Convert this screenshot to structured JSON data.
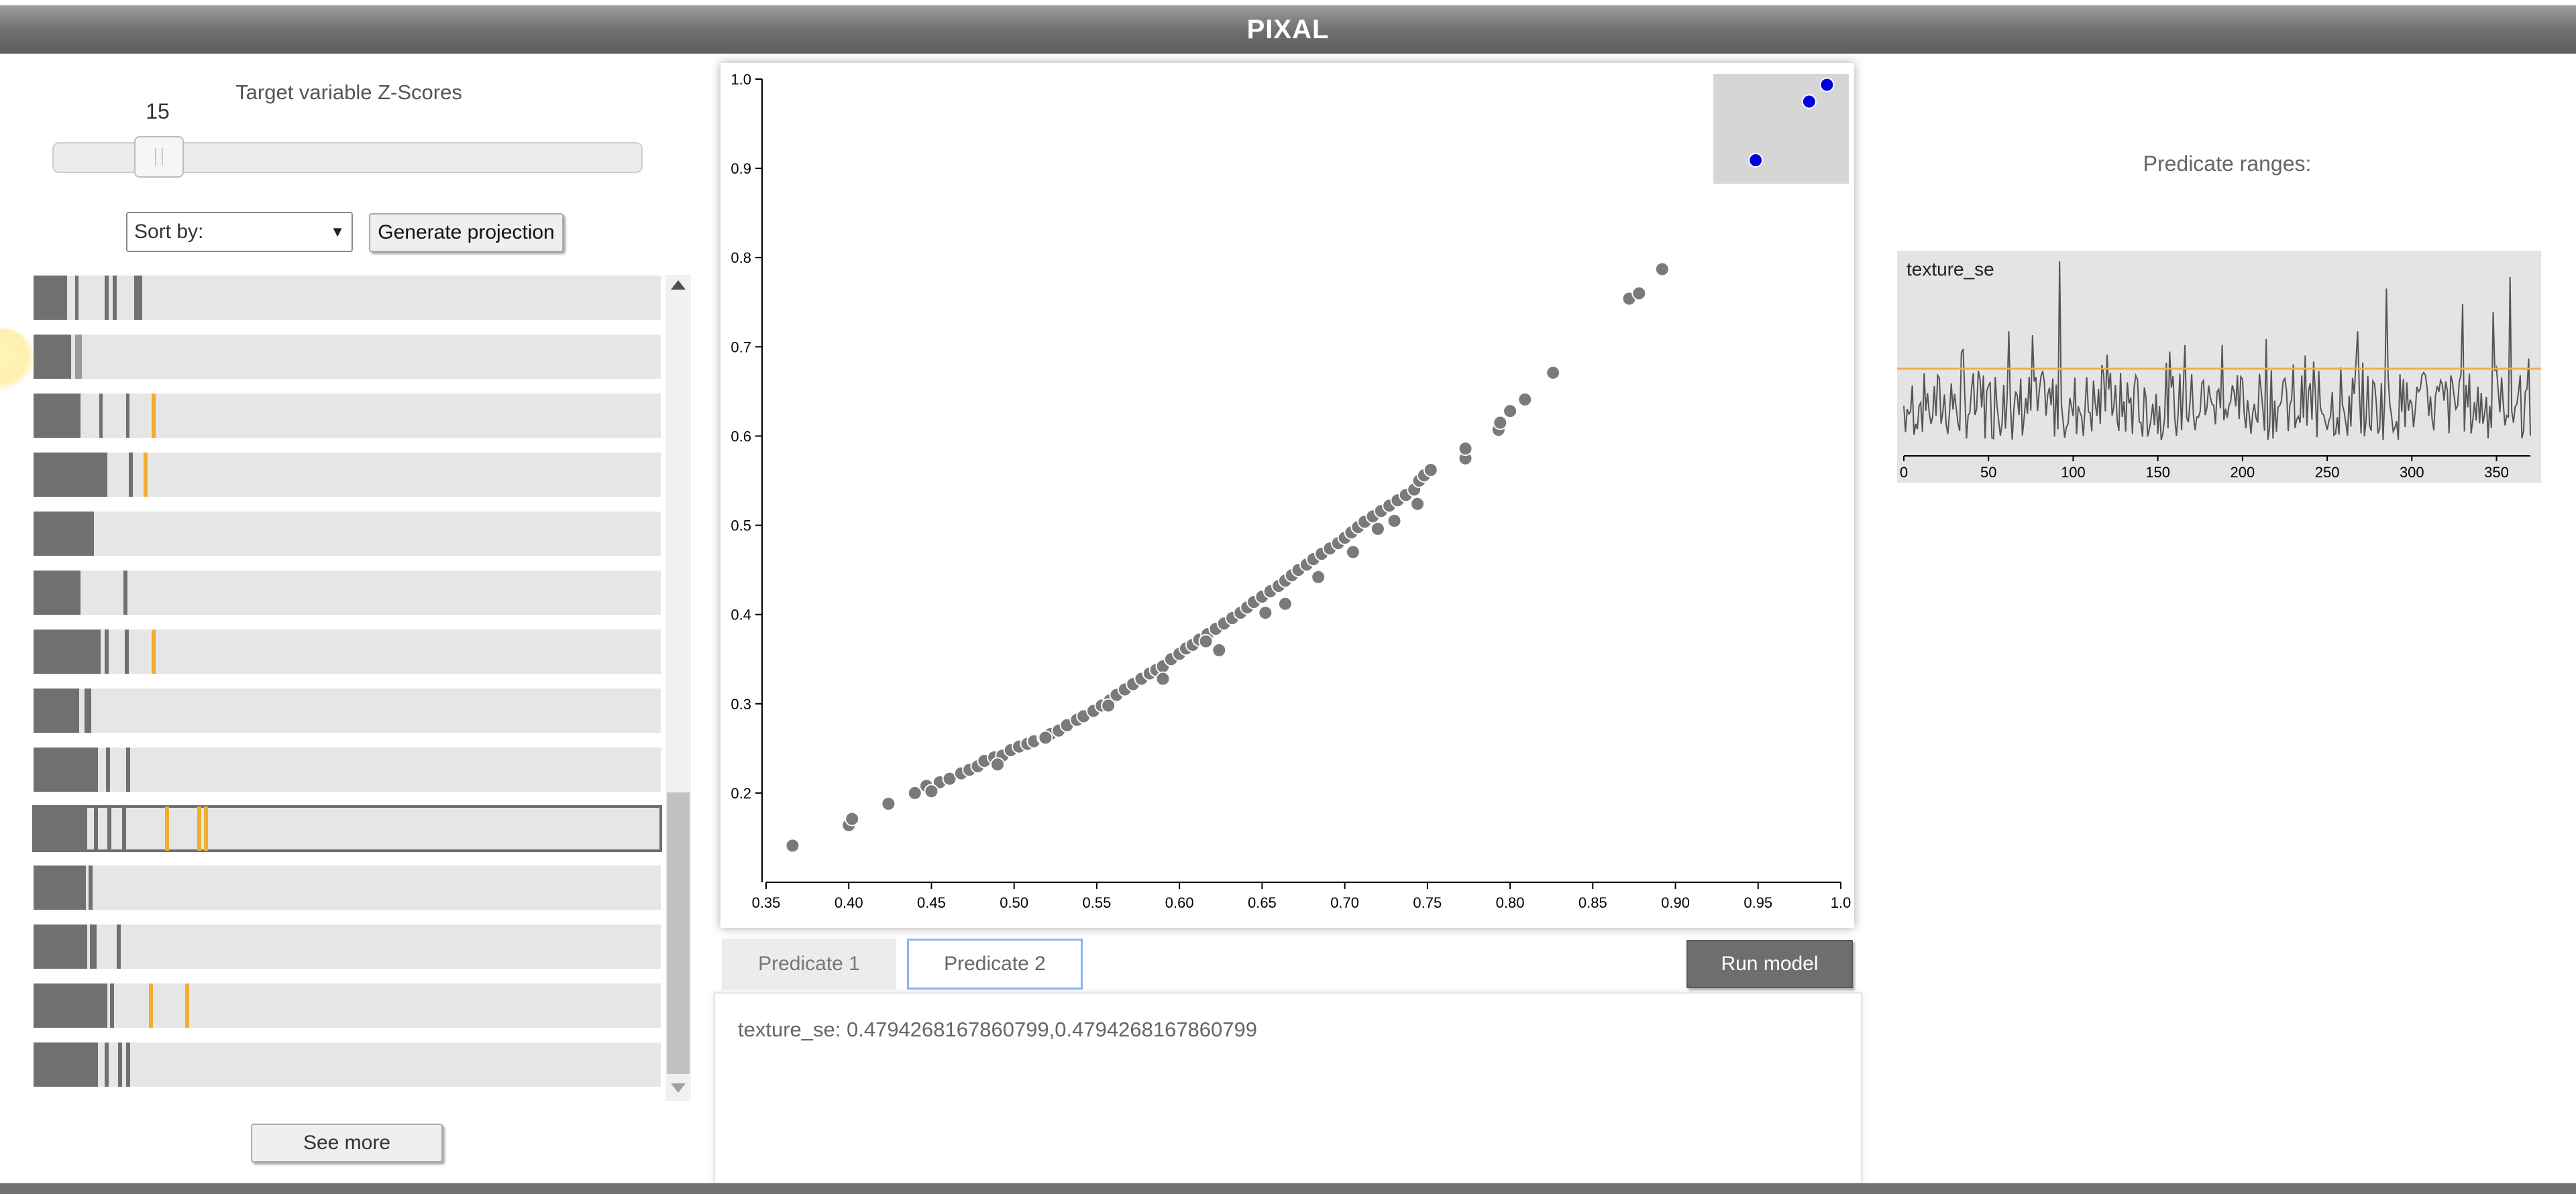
{
  "app": {
    "title": "PIXAL"
  },
  "sidebar": {
    "zscore_label": "Target variable Z-Scores",
    "slider_value": "15",
    "sort_label": "Sort by:",
    "generate_label": "Generate projection",
    "see_more_label": "See more"
  },
  "plot": {
    "x_ticks": [
      "0.35",
      "0.40",
      "0.45",
      "0.50",
      "0.55",
      "0.60",
      "0.65",
      "0.70",
      "0.75",
      "0.80",
      "0.85",
      "0.90",
      "0.95",
      "1.0"
    ],
    "y_ticks": [
      "0.2",
      "0.3",
      "0.4",
      "0.5",
      "0.6",
      "0.7",
      "0.8",
      "0.9",
      "1.0"
    ],
    "point_color": "#7a7a7a",
    "inset_point_color": "#0000dd"
  },
  "chart_data": {
    "type": "scatter",
    "xlim": [
      0.35,
      1.0
    ],
    "ylim": [
      0.1,
      1.0
    ],
    "grid": false,
    "points": [
      [
        0.366,
        0.141
      ],
      [
        0.4,
        0.164
      ],
      [
        0.402,
        0.171
      ],
      [
        0.424,
        0.188
      ],
      [
        0.44,
        0.2
      ],
      [
        0.447,
        0.208
      ],
      [
        0.455,
        0.212
      ],
      [
        0.461,
        0.216
      ],
      [
        0.468,
        0.222
      ],
      [
        0.473,
        0.226
      ],
      [
        0.478,
        0.23
      ],
      [
        0.482,
        0.236
      ],
      [
        0.488,
        0.24
      ],
      [
        0.493,
        0.242
      ],
      [
        0.498,
        0.248
      ],
      [
        0.503,
        0.252
      ],
      [
        0.508,
        0.255
      ],
      [
        0.512,
        0.258
      ],
      [
        0.518,
        0.262
      ],
      [
        0.522,
        0.266
      ],
      [
        0.527,
        0.27
      ],
      [
        0.532,
        0.276
      ],
      [
        0.538,
        0.282
      ],
      [
        0.542,
        0.286
      ],
      [
        0.548,
        0.292
      ],
      [
        0.553,
        0.298
      ],
      [
        0.558,
        0.304
      ],
      [
        0.562,
        0.31
      ],
      [
        0.567,
        0.316
      ],
      [
        0.572,
        0.322
      ],
      [
        0.577,
        0.328
      ],
      [
        0.582,
        0.334
      ],
      [
        0.586,
        0.338
      ],
      [
        0.59,
        0.342
      ],
      [
        0.595,
        0.35
      ],
      [
        0.6,
        0.356
      ],
      [
        0.604,
        0.362
      ],
      [
        0.608,
        0.366
      ],
      [
        0.612,
        0.372
      ],
      [
        0.617,
        0.378
      ],
      [
        0.622,
        0.384
      ],
      [
        0.627,
        0.39
      ],
      [
        0.632,
        0.396
      ],
      [
        0.637,
        0.402
      ],
      [
        0.641,
        0.408
      ],
      [
        0.645,
        0.414
      ],
      [
        0.65,
        0.42
      ],
      [
        0.655,
        0.426
      ],
      [
        0.66,
        0.432
      ],
      [
        0.664,
        0.438
      ],
      [
        0.668,
        0.444
      ],
      [
        0.672,
        0.45
      ],
      [
        0.677,
        0.456
      ],
      [
        0.681,
        0.462
      ],
      [
        0.686,
        0.468
      ],
      [
        0.691,
        0.474
      ],
      [
        0.696,
        0.48
      ],
      [
        0.7,
        0.486
      ],
      [
        0.704,
        0.492
      ],
      [
        0.708,
        0.498
      ],
      [
        0.712,
        0.504
      ],
      [
        0.717,
        0.51
      ],
      [
        0.722,
        0.516
      ],
      [
        0.727,
        0.522
      ],
      [
        0.732,
        0.528
      ],
      [
        0.737,
        0.534
      ],
      [
        0.742,
        0.54
      ],
      [
        0.744,
        0.524
      ],
      [
        0.745,
        0.55
      ],
      [
        0.748,
        0.556
      ],
      [
        0.664,
        0.412
      ],
      [
        0.684,
        0.442
      ],
      [
        0.705,
        0.47
      ],
      [
        0.73,
        0.505
      ],
      [
        0.624,
        0.36
      ],
      [
        0.59,
        0.328
      ],
      [
        0.557,
        0.298
      ],
      [
        0.519,
        0.262
      ],
      [
        0.45,
        0.202
      ],
      [
        0.49,
        0.232
      ],
      [
        0.616,
        0.37
      ],
      [
        0.652,
        0.402
      ],
      [
        0.72,
        0.496
      ],
      [
        0.752,
        0.562
      ],
      [
        0.773,
        0.575
      ],
      [
        0.773,
        0.586
      ],
      [
        0.793,
        0.607
      ],
      [
        0.794,
        0.615
      ],
      [
        0.8,
        0.628
      ],
      [
        0.809,
        0.641
      ],
      [
        0.826,
        0.671
      ],
      [
        0.872,
        0.754
      ],
      [
        0.878,
        0.76
      ],
      [
        0.892,
        0.787
      ]
    ],
    "inset_points": [
      [
        0.96,
        0.9
      ],
      [
        0.99,
        0.97
      ],
      [
        1.0,
        0.99
      ]
    ]
  },
  "tabs": {
    "tab1": "Predicate 1",
    "tab2": "Predicate 2"
  },
  "run_label": "Run model",
  "predicate_text": "texture_se: 0.4794268167860799,0.4794268167860799",
  "predicate_ranges_label": "Predicate ranges:",
  "pred_chart": {
    "name": "texture_se",
    "x_ticks": [
      "0",
      "50",
      "100",
      "150",
      "200",
      "250",
      "300",
      "350"
    ],
    "threshold_color": "#f0b04a",
    "line_color": "#555555"
  }
}
